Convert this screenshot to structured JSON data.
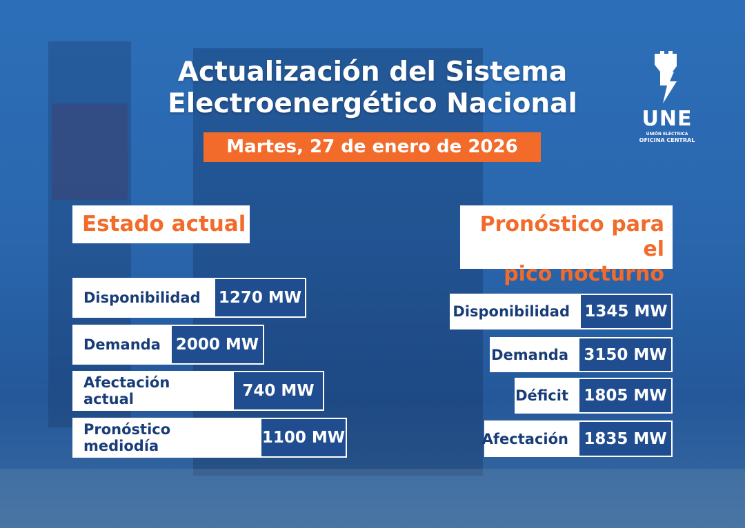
{
  "header": {
    "title_line1": "Actualización del Sistema",
    "title_line2": "Electroenergético Nacional",
    "date": "Martes, 27 de enero de 2026"
  },
  "logo": {
    "name": "UNE",
    "line1": "UNIÓN ELÉCTRICA",
    "line2": "OFICINA CENTRAL",
    "icon": "fist-lightning-icon"
  },
  "current": {
    "heading": "Estado actual",
    "rows": [
      {
        "label": "Disponibilidad",
        "value": "1270 MW"
      },
      {
        "label": "Demanda",
        "value": "2000 MW"
      },
      {
        "label": "Afectación actual",
        "value": "740 MW"
      },
      {
        "label": "Pronóstico mediodía",
        "value": "1100 MW"
      }
    ]
  },
  "forecast": {
    "heading_line1": "Pronóstico para el",
    "heading_line2": "pico nocturno",
    "rows": [
      {
        "label": "Disponibilidad",
        "value": "1345 MW"
      },
      {
        "label": "Demanda",
        "value": "3150 MW"
      },
      {
        "label": "Déficit",
        "value": "1805 MW"
      },
      {
        "label": "Afectación",
        "value": "1835 MW"
      }
    ]
  },
  "colors": {
    "accent": "#f26b2b",
    "background": "#2a66ad",
    "navy": "#183c78"
  }
}
